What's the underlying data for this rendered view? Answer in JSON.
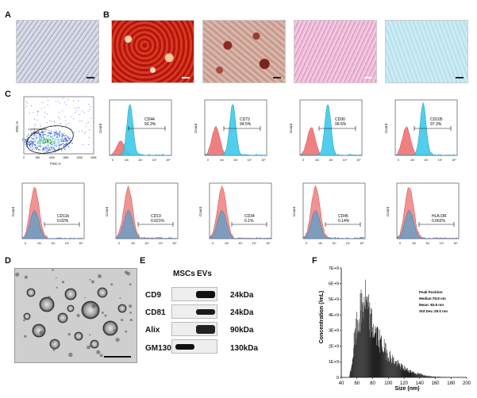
{
  "panels": {
    "A": "A",
    "B": "B",
    "C": "C",
    "D": "D",
    "E": "E",
    "F": "F"
  },
  "colors": {
    "red_bg": "#c9241c",
    "pink": "#e6a3c8",
    "light_blue": "#bfe3ef",
    "hist_red": "#f08080",
    "hist_cyan": "#3ec9ea",
    "hist_blue": "#6a9ec2"
  },
  "scatter": {
    "xlabel": "FSC-A",
    "ylabel": "SSC-A",
    "gate_name": "Lymphocytes",
    "gate_value": "86.3",
    "xticks": [
      "0",
      "50K",
      "100K",
      "150K",
      "200K",
      "250K"
    ]
  },
  "histograms_top": [
    {
      "marker": "CD44",
      "pct": "93.3%"
    },
    {
      "marker": "CD73",
      "pct": "94.5%"
    },
    {
      "marker": "CD90",
      "pct": "99.6%"
    },
    {
      "marker": "CD105",
      "pct": "97.3%"
    }
  ],
  "histograms_bottom": [
    {
      "marker": "CD11b",
      "pct": "0.02%"
    },
    {
      "marker": "CD19",
      "pct": "0.021%"
    },
    {
      "marker": "CD34",
      "pct": "0.1%"
    },
    {
      "marker": "CD45",
      "pct": "0.14%"
    },
    {
      "marker": "HLA-DR",
      "pct": "0.062%"
    }
  ],
  "hist_axis": {
    "ylabel": "Count",
    "xticks": [
      "0",
      "10²",
      "10³",
      "10⁴",
      "10⁵"
    ]
  },
  "western": {
    "col_headers": [
      "MSCs",
      "EVs"
    ],
    "rows": [
      {
        "protein": "CD9",
        "kda": "24kDa"
      },
      {
        "protein": "CD81",
        "kda": "24kDa"
      },
      {
        "protein": "Alix",
        "kda": "90kDa"
      },
      {
        "protein": "GM130",
        "kda": "130kDa"
      }
    ]
  },
  "chart_data": {
    "type": "bar",
    "xlabel": "Size (nm)",
    "ylabel": "Concentration (/mL)",
    "xlim": [
      40,
      200
    ],
    "ylim": [
      0,
      7
    ],
    "xticks": [
      "40",
      "60",
      "80",
      "100",
      "120",
      "140",
      "160",
      "180",
      "200"
    ],
    "yticks": [
      "0",
      "1E+9",
      "2E+9",
      "3E+9",
      "4E+9",
      "5E+9",
      "6E+9",
      "7E+9"
    ],
    "annotation": {
      "title": "Peak Position",
      "median": "Median:76.8 nm",
      "mean": "Mean: 83.8 nm",
      "std": "Std Dev.:25.0 nm"
    },
    "envelope": [
      [
        50,
        0.1
      ],
      [
        52,
        0.6
      ],
      [
        54,
        1.4
      ],
      [
        56,
        2.6
      ],
      [
        58,
        3.3
      ],
      [
        60,
        4.0
      ],
      [
        62,
        4.4
      ],
      [
        64,
        4.9
      ],
      [
        66,
        5.4
      ],
      [
        68,
        5.8
      ],
      [
        70,
        6.2
      ],
      [
        72,
        5.4
      ],
      [
        74,
        5.0
      ],
      [
        76,
        4.6
      ],
      [
        78,
        4.2
      ],
      [
        80,
        3.8
      ],
      [
        84,
        3.4
      ],
      [
        88,
        2.9
      ],
      [
        92,
        2.5
      ],
      [
        96,
        2.1
      ],
      [
        100,
        1.8
      ],
      [
        105,
        1.4
      ],
      [
        110,
        1.1
      ],
      [
        115,
        0.9
      ],
      [
        120,
        0.7
      ],
      [
        125,
        0.55
      ],
      [
        130,
        0.45
      ],
      [
        135,
        0.3
      ],
      [
        140,
        0.25
      ],
      [
        145,
        0.18
      ],
      [
        150,
        0.12
      ],
      [
        155,
        0.08
      ],
      [
        160,
        0.05
      ],
      [
        170,
        0.03
      ],
      [
        180,
        0.01
      ]
    ]
  }
}
